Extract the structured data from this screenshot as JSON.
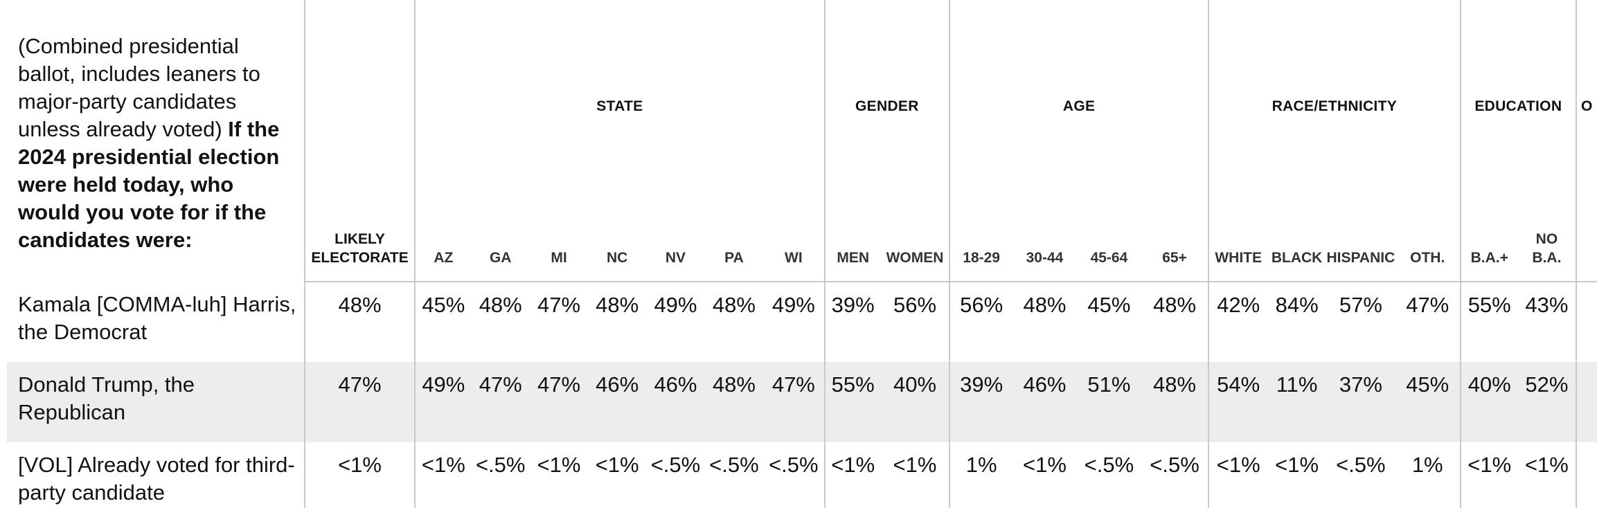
{
  "question": {
    "prefix": "(Combined presidential ballot, includes leaners to major-party candidates unless already voted)",
    "bold": "If the 2024 presidential election were held today, who would you vote for if the candidates were:"
  },
  "groups": [
    "STATE",
    "GENDER",
    "AGE",
    "RACE/ETHNICITY",
    "EDUCATION",
    "O"
  ],
  "columns": {
    "likely_line1": "LIKELY",
    "likely_line2": "ELECTORATE",
    "state": [
      "AZ",
      "GA",
      "MI",
      "NC",
      "NV",
      "PA",
      "WI"
    ],
    "gender": [
      "MEN",
      "WOMEN"
    ],
    "age": [
      "18-29",
      "30-44",
      "45-64",
      "65+"
    ],
    "race": [
      "WHITE",
      "BLACK",
      "HISPANIC",
      "OTH."
    ],
    "edu1": "B.A.+",
    "edu2_line1": "NO",
    "edu2_line2": "B.A."
  },
  "rows": [
    {
      "label": "Kamala [COMMA-luh] Harris, the Democrat",
      "values": [
        "48%",
        "45%",
        "48%",
        "47%",
        "48%",
        "49%",
        "48%",
        "49%",
        "39%",
        "56%",
        "56%",
        "48%",
        "45%",
        "48%",
        "42%",
        "84%",
        "57%",
        "47%",
        "55%",
        "43%"
      ]
    },
    {
      "label": "Donald Trump, the Republican",
      "values": [
        "47%",
        "49%",
        "47%",
        "47%",
        "46%",
        "46%",
        "48%",
        "47%",
        "55%",
        "40%",
        "39%",
        "46%",
        "51%",
        "48%",
        "54%",
        "11%",
        "37%",
        "45%",
        "40%",
        "52%"
      ]
    },
    {
      "label": "[VOL] Already voted for third-party candidate",
      "values": [
        "<1%",
        "<1%",
        "<.5%",
        "<1%",
        "<1%",
        "<.5%",
        "<.5%",
        "<.5%",
        "<1%",
        "<1%",
        "1%",
        "<1%",
        "<.5%",
        "<.5%",
        "<1%",
        "<1%",
        "<.5%",
        "1%",
        "<1%",
        "<1%"
      ]
    }
  ]
}
